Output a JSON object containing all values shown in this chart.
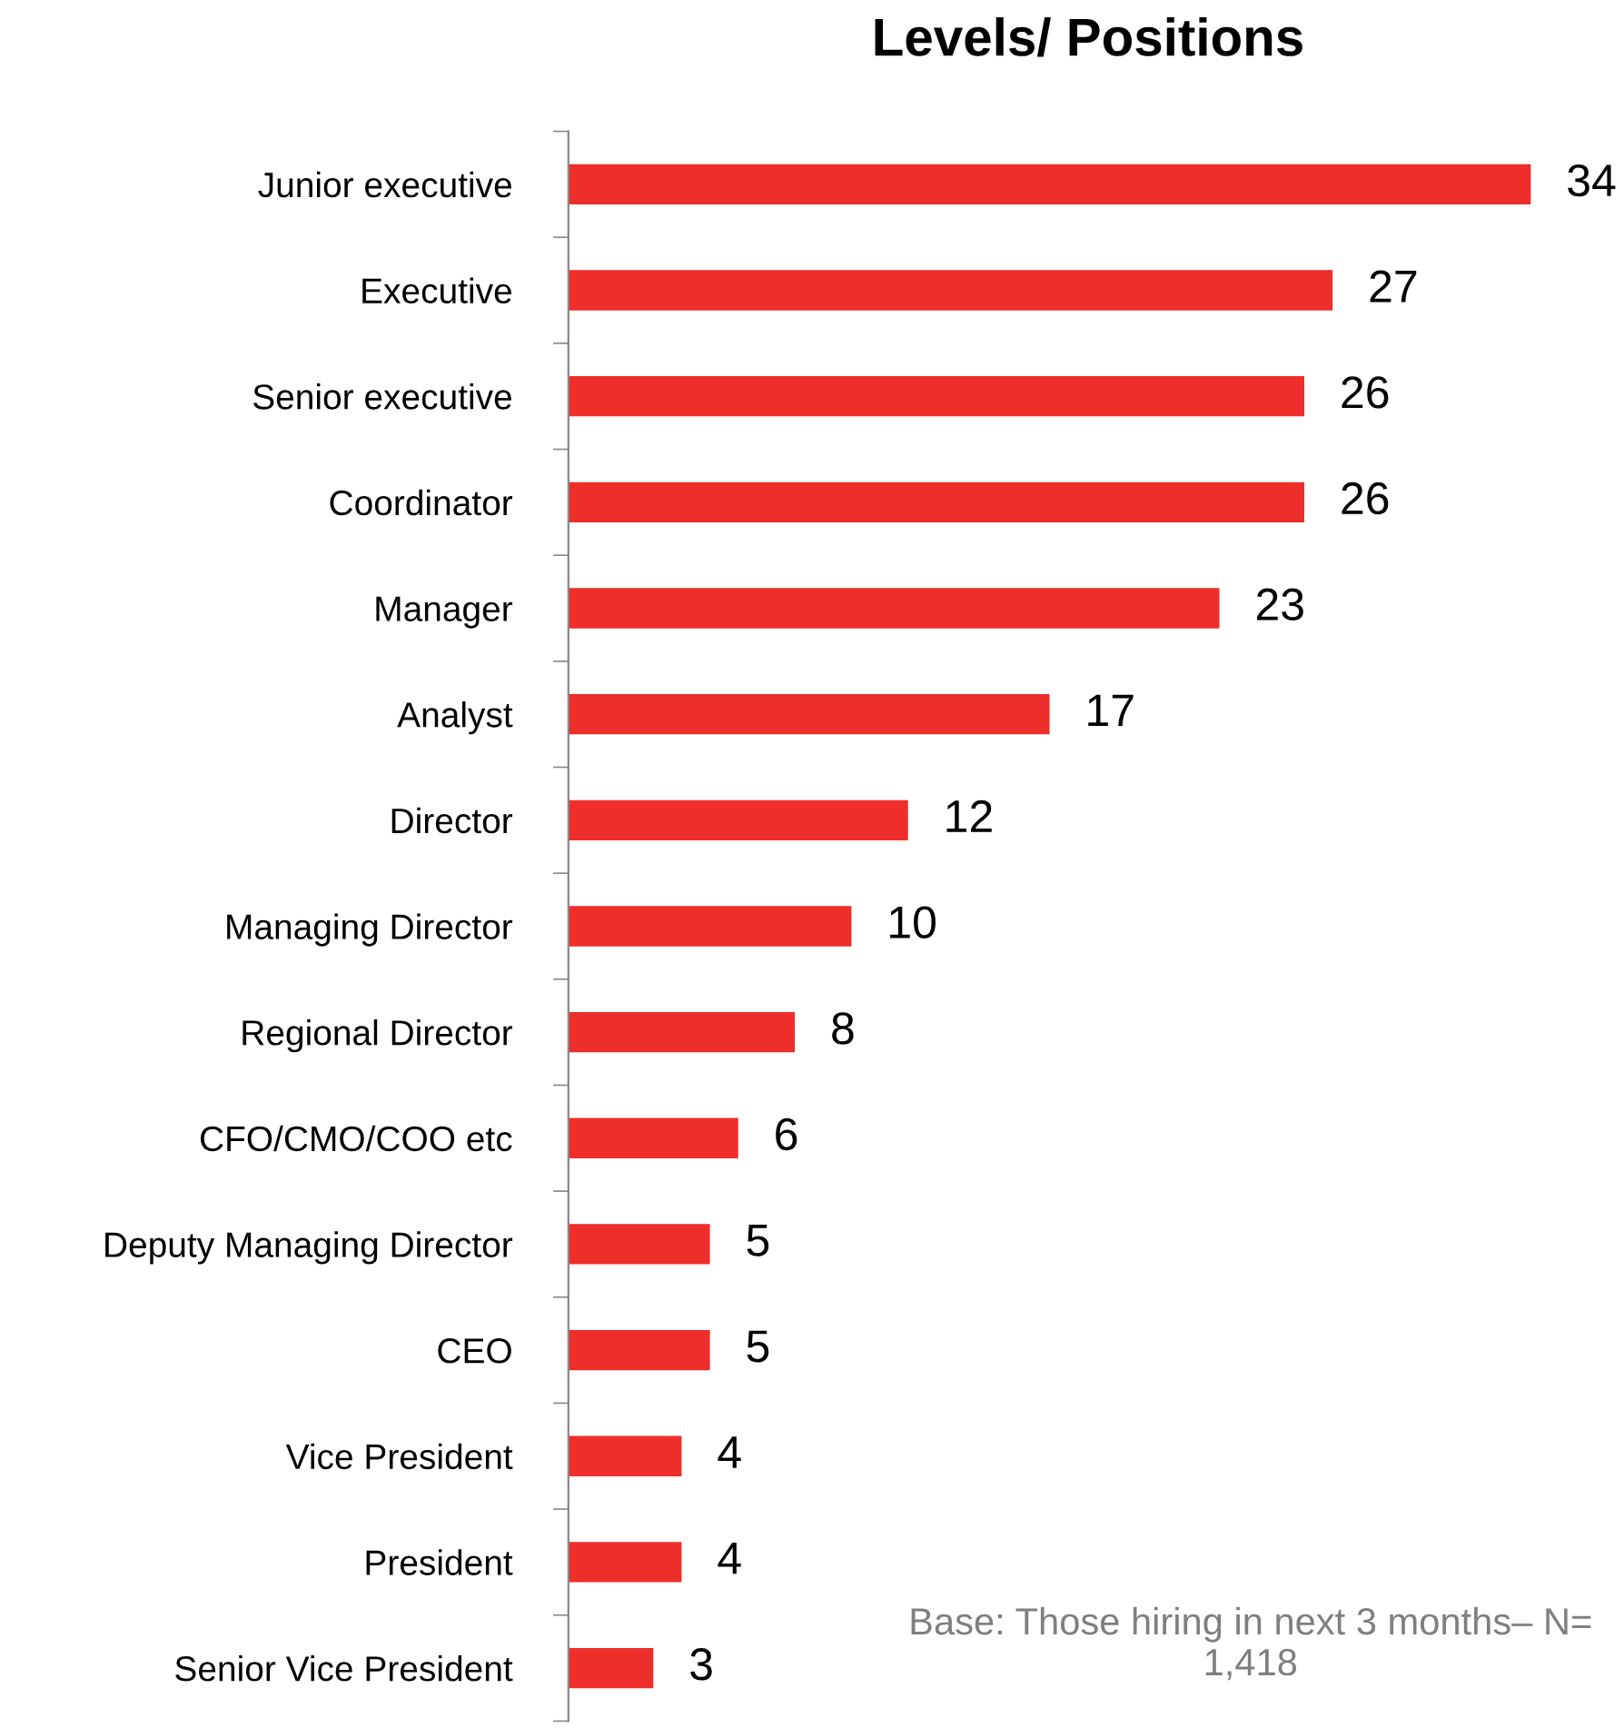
{
  "chart_data": {
    "type": "bar",
    "orientation": "horizontal",
    "title": "Levels/ Positions",
    "categories": [
      "Junior executive",
      "Executive",
      "Senior executive",
      "Coordinator",
      "Manager",
      "Analyst",
      "Director",
      "Managing Director",
      "Regional Director",
      "CFO/CMO/COO etc",
      "Deputy Managing Director",
      "CEO",
      "Vice President",
      "President",
      "Senior Vice President"
    ],
    "values": [
      34,
      27,
      26,
      26,
      23,
      17,
      12,
      10,
      8,
      6,
      5,
      5,
      4,
      4,
      3
    ],
    "color": "#ee2e2b",
    "data_labels": true,
    "grid": false,
    "legend": false,
    "annotations": [
      "Base: Those hiring in next 3 months– N= 1,418"
    ]
  }
}
